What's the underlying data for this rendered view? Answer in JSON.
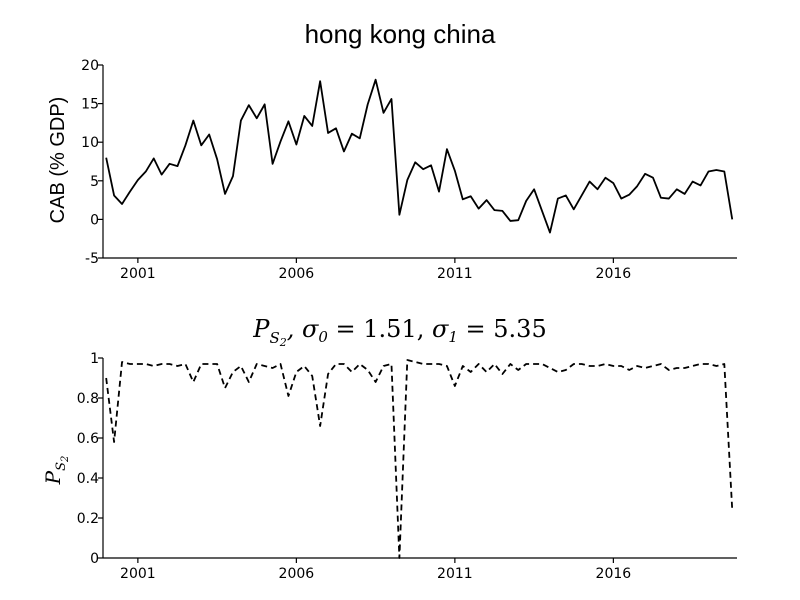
{
  "chart_data": [
    {
      "type": "line",
      "title": "hong kong china",
      "xlabel": "",
      "ylabel": "CAB (% GDP)",
      "xlim": [
        1999.9,
        2019.9
      ],
      "ylim": [
        -5,
        20
      ],
      "yticks": [
        20,
        15,
        10,
        5,
        0,
        -5
      ],
      "xticks": [
        2001,
        2006,
        2011,
        2016
      ],
      "series": [
        {
          "line_style": "solid",
          "color": "#000000",
          "x": [
            2000.0,
            2000.25,
            2000.5,
            2000.75,
            2001.0,
            2001.25,
            2001.5,
            2001.75,
            2002.0,
            2002.25,
            2002.5,
            2002.75,
            2003.0,
            2003.25,
            2003.5,
            2003.75,
            2004.0,
            2004.25,
            2004.5,
            2004.75,
            2005.0,
            2005.25,
            2005.5,
            2005.75,
            2006.0,
            2006.25,
            2006.5,
            2006.75,
            2007.0,
            2007.25,
            2007.5,
            2007.75,
            2008.0,
            2008.25,
            2008.5,
            2008.75,
            2009.0,
            2009.25,
            2009.5,
            2009.75,
            2010.0,
            2010.25,
            2010.5,
            2010.75,
            2011.0,
            2011.25,
            2011.5,
            2011.75,
            2012.0,
            2012.25,
            2012.5,
            2012.75,
            2013.0,
            2013.25,
            2013.5,
            2013.75,
            2014.0,
            2014.25,
            2014.5,
            2014.75,
            2015.0,
            2015.25,
            2015.5,
            2015.75,
            2016.0,
            2016.25,
            2016.5,
            2016.75,
            2017.0,
            2017.25,
            2017.5,
            2017.75,
            2018.0,
            2018.25,
            2018.5,
            2018.75,
            2019.0,
            2019.25,
            2019.5,
            2019.75
          ],
          "y": [
            8.0,
            3.1,
            2.0,
            3.6,
            5.1,
            6.2,
            7.9,
            5.8,
            7.2,
            6.9,
            9.6,
            12.8,
            9.6,
            11.0,
            7.8,
            3.3,
            5.6,
            12.8,
            14.8,
            13.1,
            14.9,
            7.2,
            10.1,
            12.7,
            9.7,
            13.4,
            12.1,
            17.9,
            11.2,
            11.8,
            8.8,
            11.1,
            10.5,
            14.9,
            18.1,
            13.8,
            15.6,
            0.6,
            5.1,
            7.4,
            6.5,
            7.0,
            3.6,
            9.1,
            6.3,
            2.6,
            3.0,
            1.4,
            2.5,
            1.2,
            1.1,
            -0.2,
            -0.1,
            2.4,
            3.9,
            1.1,
            -1.7,
            2.7,
            3.1,
            1.3,
            3.1,
            4.9,
            3.9,
            5.4,
            4.7,
            2.7,
            3.2,
            4.3,
            5.9,
            5.4,
            2.8,
            2.7,
            3.9,
            3.3,
            4.9,
            4.4,
            6.2,
            6.4,
            6.2,
            0.0
          ]
        }
      ]
    },
    {
      "type": "line",
      "title": "P_{S_2}, σ_0 = 1.51, σ_1 = 5.35",
      "xlabel": "",
      "ylabel": "P_{S_2}",
      "xlim": [
        1999.9,
        2019.9
      ],
      "ylim": [
        0,
        1
      ],
      "yticks": [
        1,
        0.8,
        0.6,
        0.4,
        0.2,
        0
      ],
      "xticks": [
        2001,
        2006,
        2011,
        2016
      ],
      "series": [
        {
          "line_style": "dashed",
          "color": "#000000",
          "x": [
            2000.0,
            2000.25,
            2000.5,
            2000.75,
            2001.0,
            2001.25,
            2001.5,
            2001.75,
            2002.0,
            2002.25,
            2002.5,
            2002.75,
            2003.0,
            2003.25,
            2003.5,
            2003.75,
            2004.0,
            2004.25,
            2004.5,
            2004.75,
            2005.0,
            2005.25,
            2005.5,
            2005.75,
            2006.0,
            2006.25,
            2006.5,
            2006.75,
            2007.0,
            2007.25,
            2007.5,
            2007.75,
            2008.0,
            2008.25,
            2008.5,
            2008.75,
            2009.0,
            2009.25,
            2009.5,
            2009.75,
            2010.0,
            2010.25,
            2010.5,
            2010.75,
            2011.0,
            2011.25,
            2011.5,
            2011.75,
            2012.0,
            2012.25,
            2012.5,
            2012.75,
            2013.0,
            2013.25,
            2013.5,
            2013.75,
            2014.0,
            2014.25,
            2014.5,
            2014.75,
            2015.0,
            2015.25,
            2015.5,
            2015.75,
            2016.0,
            2016.25,
            2016.5,
            2016.75,
            2017.0,
            2017.25,
            2017.5,
            2017.75,
            2018.0,
            2018.25,
            2018.5,
            2018.75,
            2019.0,
            2019.25,
            2019.5,
            2019.75
          ],
          "y": [
            0.9,
            0.58,
            0.98,
            0.97,
            0.97,
            0.97,
            0.96,
            0.97,
            0.97,
            0.96,
            0.97,
            0.88,
            0.97,
            0.97,
            0.97,
            0.85,
            0.93,
            0.96,
            0.88,
            0.97,
            0.96,
            0.95,
            0.97,
            0.81,
            0.93,
            0.96,
            0.91,
            0.66,
            0.92,
            0.97,
            0.97,
            0.93,
            0.97,
            0.94,
            0.88,
            0.96,
            0.97,
            0.0,
            0.99,
            0.98,
            0.97,
            0.97,
            0.97,
            0.96,
            0.86,
            0.96,
            0.93,
            0.97,
            0.93,
            0.97,
            0.92,
            0.97,
            0.94,
            0.97,
            0.97,
            0.97,
            0.95,
            0.93,
            0.94,
            0.97,
            0.97,
            0.96,
            0.96,
            0.97,
            0.96,
            0.96,
            0.94,
            0.96,
            0.95,
            0.96,
            0.97,
            0.94,
            0.95,
            0.95,
            0.96,
            0.97,
            0.97,
            0.96,
            0.97,
            0.24
          ]
        }
      ]
    }
  ]
}
